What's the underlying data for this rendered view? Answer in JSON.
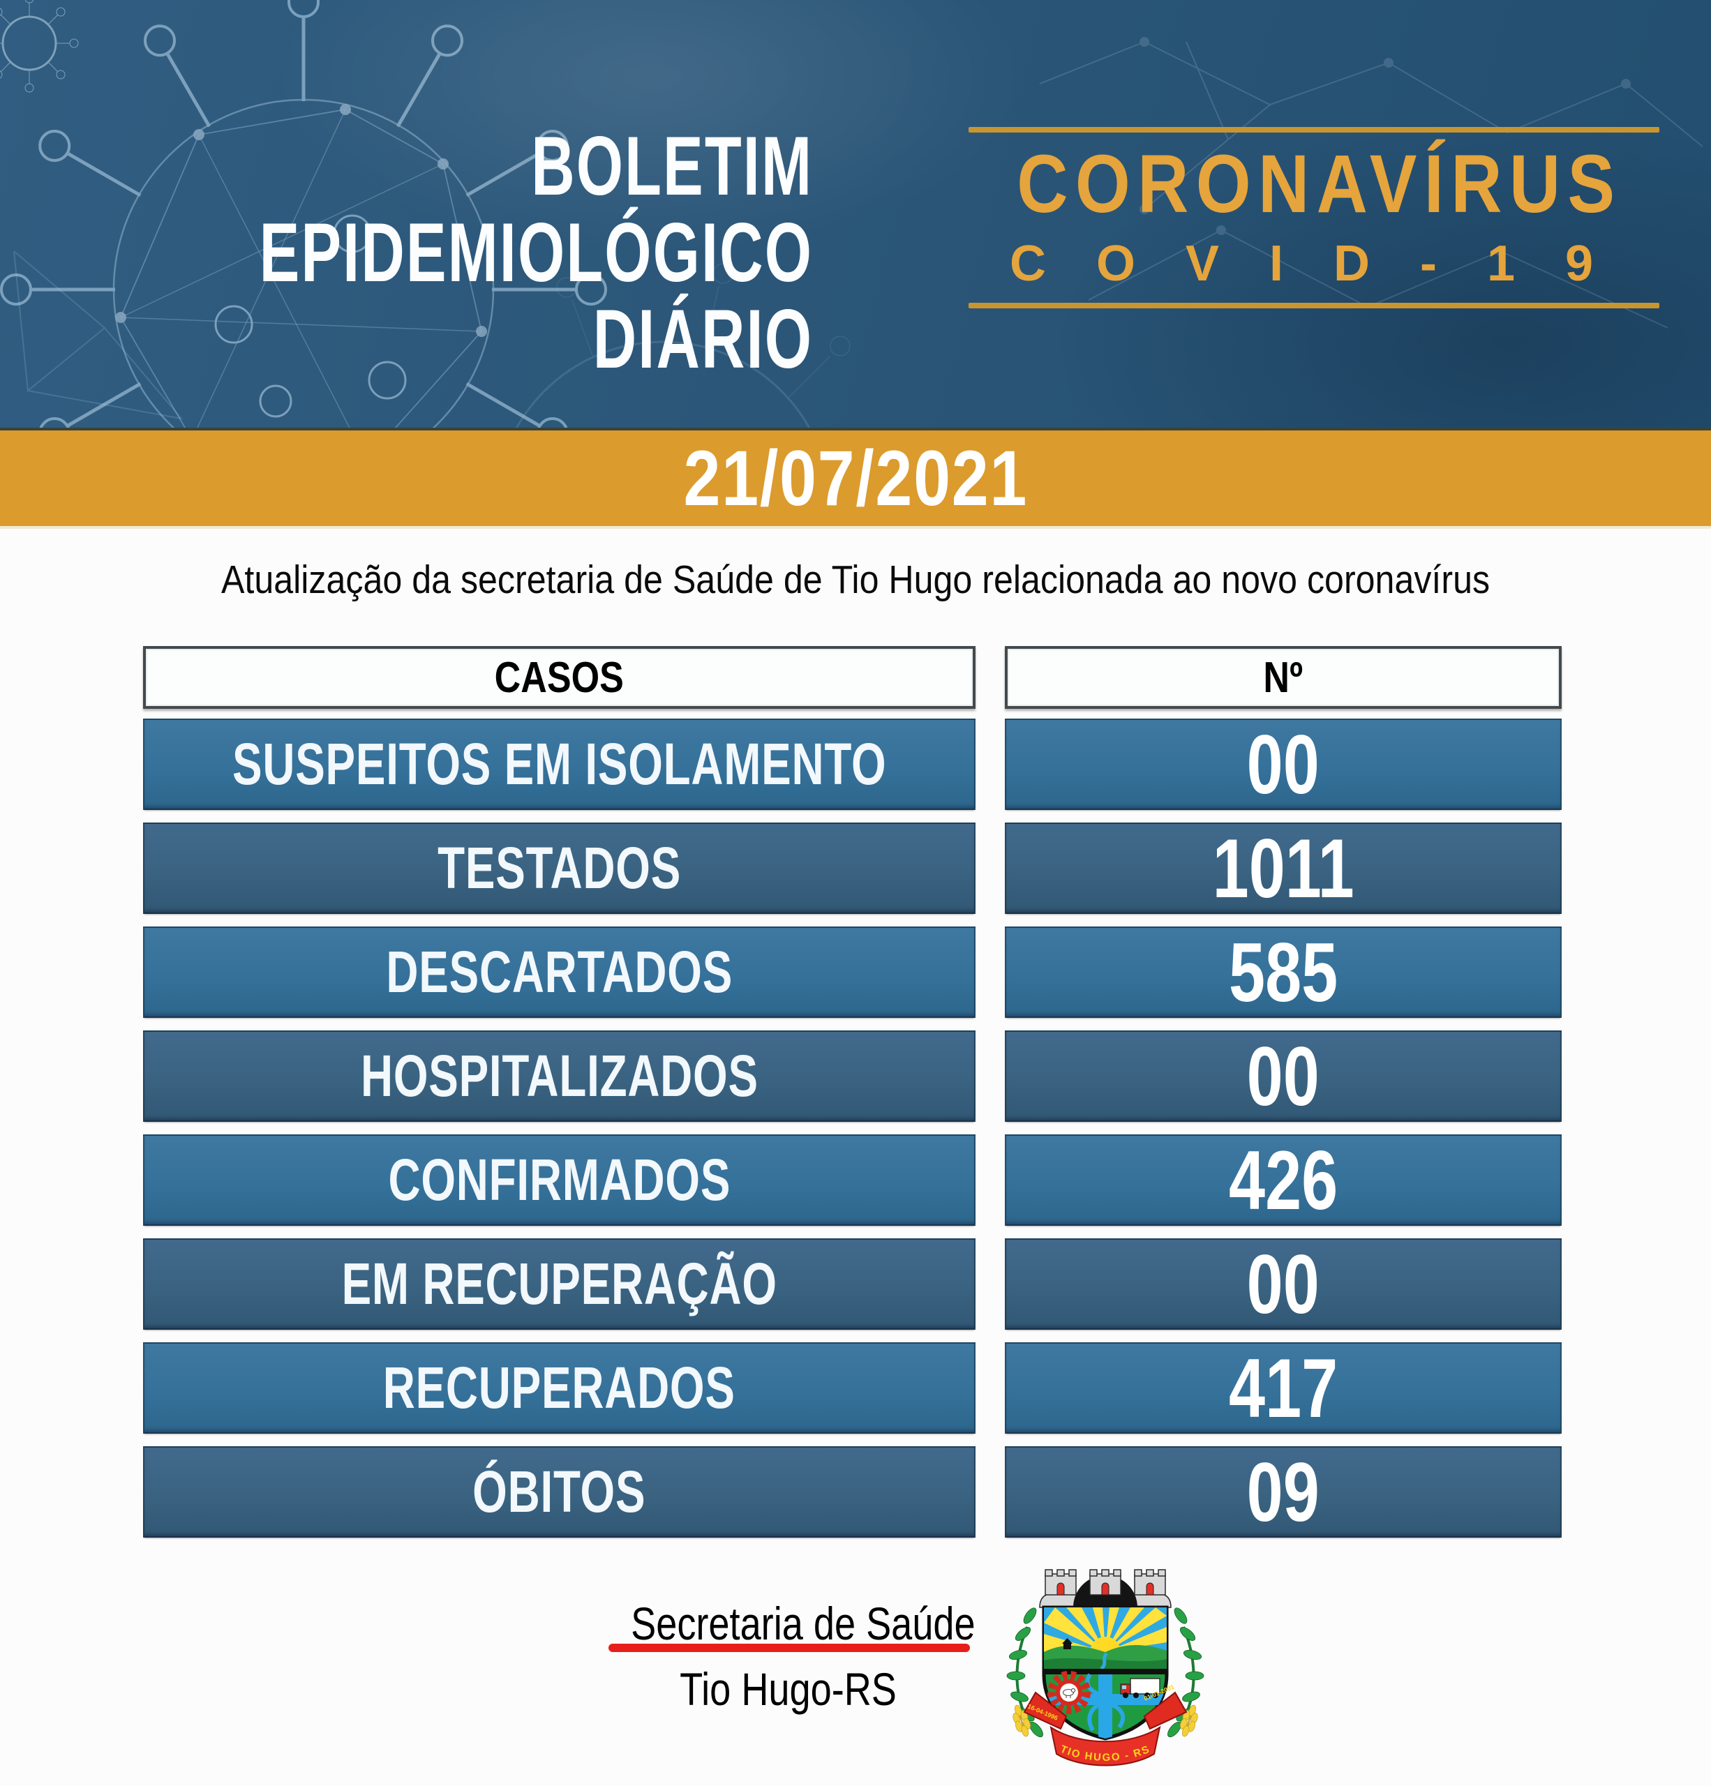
{
  "header": {
    "title_lines": [
      "BOLETIM",
      "EPIDEMIOLÓGICO",
      "DIÁRIO"
    ],
    "brand": {
      "title": "CORONAVÍRUS",
      "subtitle": "COVID-19"
    }
  },
  "date_banner": {
    "date": "21/07/2021"
  },
  "subtitle": "Atualização da secretaria de Saúde de Tio Hugo relacionada ao novo coronavírus",
  "table": {
    "columns": [
      "CASOS",
      "Nº"
    ],
    "rows": [
      {
        "label": "SUSPEITOS EM ISOLAMENTO",
        "value": "00"
      },
      {
        "label": "TESTADOS",
        "value": "1011"
      },
      {
        "label": "DESCARTADOS",
        "value": "585"
      },
      {
        "label": "HOSPITALIZADOS",
        "value": "00"
      },
      {
        "label": "CONFIRMADOS",
        "value": "426"
      },
      {
        "label": "EM RECUPERAÇÃO",
        "value": "00"
      },
      {
        "label": "RECUPERADOS",
        "value": "417"
      },
      {
        "label": "ÓBITOS",
        "value": "09"
      }
    ]
  },
  "footer": {
    "line1": "Secretaria de Saúde",
    "line2": "Tio Hugo-RS",
    "crest": {
      "banner_text": "TIO HUGO - RS",
      "date_left": "16-04-1996",
      "date_right": "01-01-2001"
    }
  },
  "colors": {
    "header_bg": "#2b5678",
    "banner_gold": "#db9b2d",
    "gold_text": "#e5a43c",
    "row_light": "#35719a",
    "row_dark": "#3a6381",
    "underline_red": "#e71f1b"
  }
}
